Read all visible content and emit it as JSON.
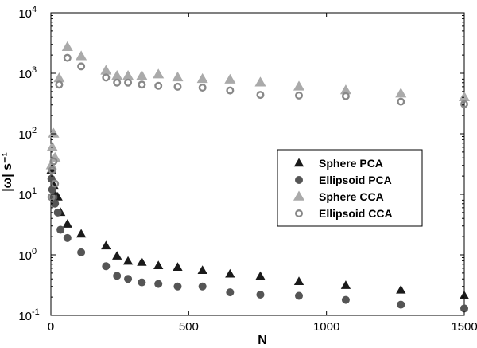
{
  "chart_data": {
    "type": "scatter",
    "title": "",
    "xlabel": "N",
    "ylabel": "|ω| s⁻¹",
    "xlim": [
      0,
      1500
    ],
    "ylim": [
      0.1,
      10000
    ],
    "yscale": "log",
    "grid": false,
    "legend_position": "right-center",
    "x_ticks": [
      0,
      500,
      1000,
      1500
    ],
    "y_ticks": [
      {
        "value": 0.1,
        "base": "10",
        "exp": "-1"
      },
      {
        "value": 1,
        "base": "10",
        "exp": "0"
      },
      {
        "value": 10,
        "base": "10",
        "exp": "1"
      },
      {
        "value": 100,
        "base": "10",
        "exp": "2"
      },
      {
        "value": 1000,
        "base": "10",
        "exp": "3"
      },
      {
        "value": 10000,
        "base": "10",
        "exp": "4"
      }
    ],
    "series": [
      {
        "name": "Sphere PCA",
        "marker": "triangle-filled",
        "color": "#1a1a1a",
        "x": [
          2,
          5,
          10,
          15,
          25,
          35,
          60,
          110,
          200,
          240,
          280,
          330,
          390,
          460,
          550,
          650,
          760,
          900,
          1070,
          1270,
          1500
        ],
        "y": [
          25,
          18,
          14,
          10,
          9,
          5,
          3.2,
          2.2,
          1.4,
          0.95,
          0.78,
          0.75,
          0.66,
          0.62,
          0.55,
          0.48,
          0.44,
          0.36,
          0.31,
          0.26,
          0.21
        ]
      },
      {
        "name": "Ellipsoid PCA",
        "marker": "circle-filled",
        "color": "#555555",
        "x": [
          2,
          5,
          10,
          15,
          25,
          35,
          60,
          110,
          200,
          240,
          280,
          330,
          390,
          460,
          550,
          650,
          760,
          900,
          1070,
          1270,
          1500
        ],
        "y": [
          18,
          12,
          9,
          7,
          5,
          2.6,
          1.9,
          1.1,
          0.65,
          0.45,
          0.4,
          0.35,
          0.33,
          0.3,
          0.3,
          0.24,
          0.22,
          0.21,
          0.18,
          0.15,
          0.13
        ]
      },
      {
        "name": "Sphere CCA",
        "marker": "triangle-open",
        "color": "#aaaaaa",
        "x": [
          2,
          5,
          10,
          15,
          30,
          60,
          110,
          200,
          240,
          280,
          330,
          390,
          460,
          550,
          650,
          760,
          900,
          1070,
          1270,
          1500
        ],
        "y": [
          30,
          60,
          100,
          40,
          820,
          2700,
          1900,
          1100,
          900,
          900,
          900,
          950,
          850,
          800,
          780,
          700,
          600,
          520,
          460,
          400
        ]
      },
      {
        "name": "Ellipsoid CCA",
        "marker": "circle-open",
        "color": "#888888",
        "x": [
          2,
          5,
          10,
          15,
          30,
          60,
          110,
          200,
          240,
          280,
          330,
          390,
          460,
          550,
          650,
          760,
          900,
          1070,
          1270,
          1500
        ],
        "y": [
          9,
          25,
          35,
          15,
          650,
          1800,
          1300,
          850,
          700,
          700,
          650,
          620,
          600,
          580,
          520,
          440,
          430,
          420,
          340,
          310
        ]
      }
    ]
  }
}
